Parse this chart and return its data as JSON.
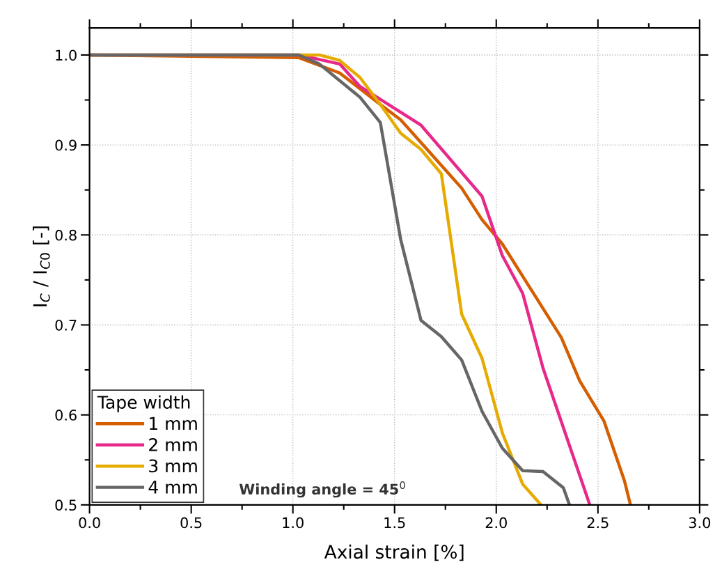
{
  "chart_data": {
    "type": "line",
    "xlabel": "Axial strain [%]",
    "ylabel": "I$_{C}$ / I$_{C0}$ [-]",
    "legend_title": "Tape width",
    "legend": "bottom left",
    "grid": true,
    "line_style": "solid",
    "marker": "none",
    "annotations": [
      "Winding angle = 45$^{0}$"
    ],
    "xlim": [
      0,
      3.0
    ],
    "ylim": [
      0.5,
      1.03
    ],
    "xticks": [
      {
        "value": 0,
        "label": "0.0"
      },
      {
        "value": 0.25,
        "label": null
      },
      0.5,
      {
        "value": 0.75,
        "label": null
      },
      {
        "value": 1,
        "label": "1.0"
      },
      {
        "value": 1.25,
        "label": null
      },
      1.5,
      {
        "value": 1.75,
        "label": null
      },
      {
        "value": 2,
        "label": "2.0"
      },
      {
        "value": 2.25,
        "label": null
      },
      2.5,
      {
        "value": 2.75,
        "label": null
      },
      {
        "value": 3,
        "label": "3.0"
      }
    ],
    "yticks": [
      0.5,
      {
        "value": 0.55,
        "label": null
      },
      0.6,
      {
        "value": 0.65,
        "label": null
      },
      0.7,
      {
        "value": 0.75,
        "label": null
      },
      0.8,
      {
        "value": 0.85,
        "label": null
      },
      0.9,
      {
        "value": 0.95,
        "label": null
      },
      {
        "value": 1,
        "label": "1.0"
      }
    ],
    "series": [
      {
        "name": "1 mm",
        "color": "#d55e00",
        "x": [
          0,
          1.03,
          1.23,
          1.43,
          1.53,
          1.83,
          1.93,
          2.03,
          2.32,
          2.41,
          2.53,
          2.63,
          2.66
        ],
        "values": [
          1.0,
          0.997,
          0.98,
          0.945,
          0.928,
          0.852,
          0.817,
          0.79,
          0.686,
          0.638,
          0.593,
          0.527,
          0.5
        ]
      },
      {
        "name": "2 mm",
        "color": "#e7298a",
        "x": [
          0,
          1.03,
          1.23,
          1.33,
          1.63,
          1.93,
          2.03,
          2.13,
          2.23,
          2.46
        ],
        "values": [
          1.0,
          1.0,
          0.99,
          0.965,
          0.922,
          0.843,
          0.777,
          0.735,
          0.652,
          0.5
        ]
      },
      {
        "name": "3 mm",
        "color": "#e6ab02",
        "x": [
          0,
          1.03,
          1.13,
          1.23,
          1.33,
          1.43,
          1.53,
          1.63,
          1.73,
          1.83,
          1.93,
          2.03,
          2.13,
          2.22
        ],
        "values": [
          1.0,
          1.0,
          1.0,
          0.994,
          0.975,
          0.945,
          0.913,
          0.895,
          0.868,
          0.712,
          0.663,
          0.58,
          0.523,
          0.5
        ]
      },
      {
        "name": "4 mm",
        "color": "#666666",
        "x": [
          0,
          1.03,
          1.13,
          1.33,
          1.43,
          1.53,
          1.63,
          1.73,
          1.83,
          1.93,
          2.03,
          2.13,
          2.23,
          2.33,
          2.36
        ],
        "values": [
          1.0,
          1.0,
          0.99,
          0.953,
          0.925,
          0.795,
          0.705,
          0.687,
          0.661,
          0.604,
          0.563,
          0.538,
          0.537,
          0.519,
          0.5
        ]
      }
    ]
  }
}
